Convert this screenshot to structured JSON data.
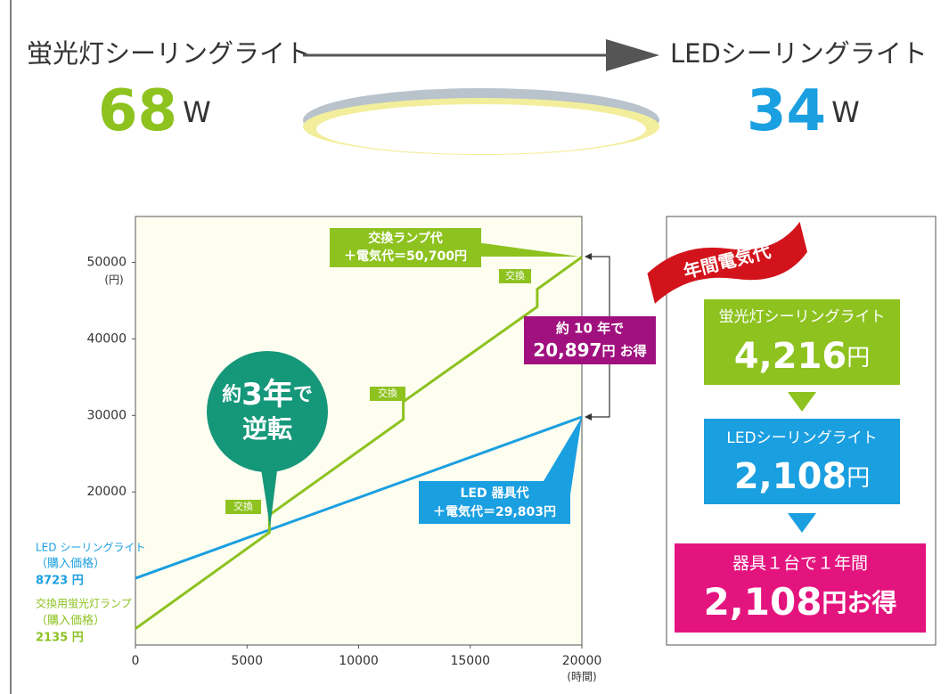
{
  "header": {
    "from_label": "蛍光灯シーリングライト",
    "from_watts": "68",
    "to_label": "LEDシーリングライト",
    "to_watts": "34",
    "unit": "W"
  },
  "chart_data": {
    "type": "line",
    "x_unit": "(時間)",
    "y_unit": "(円)",
    "xlim": [
      0,
      20000
    ],
    "ylim": [
      0,
      56000
    ],
    "xticks": [
      0,
      5000,
      10000,
      15000,
      20000
    ],
    "yticks": [
      20000,
      30000,
      40000,
      50000
    ],
    "series": [
      {
        "name": "LED シーリングライト",
        "note": "（購入価格）",
        "start_label": "8723 円",
        "color": "#1a9fe0",
        "x": [
          0,
          20000
        ],
        "values": [
          8723,
          29803
        ]
      },
      {
        "name": "交換用蛍光灯ランプ",
        "note": "（購入価格）",
        "start_label": "2135 円",
        "color": "#8dc21f",
        "x": [
          0,
          6000,
          6000,
          12000,
          12000,
          18000,
          18000,
          20000
        ],
        "values": [
          2135,
          14700,
          17000,
          29500,
          31800,
          44200,
          46500,
          50700
        ]
      }
    ],
    "annotations": {
      "fluorescent_total": [
        "交換ランプ代",
        "＋電気代＝50,700円"
      ],
      "led_total": [
        "LED 器具代",
        "＋電気代＝29,803円"
      ],
      "exchange": [
        "交換",
        "交換",
        "交換"
      ],
      "savings": [
        "約 10 年で",
        "20,897",
        "円 お得"
      ],
      "reversal": [
        "約",
        "3年",
        "で",
        "逆転"
      ]
    }
  },
  "annual_panel": {
    "ribbon": "年間電気代",
    "items": [
      {
        "label": "蛍光灯シーリングライト",
        "amount": "4,216",
        "unit": "円"
      },
      {
        "label": "LEDシーリングライト",
        "amount": "2,108",
        "unit": "円"
      },
      {
        "label": "器具１台で１年間",
        "amount": "2,108",
        "unit": "円お得"
      }
    ]
  }
}
